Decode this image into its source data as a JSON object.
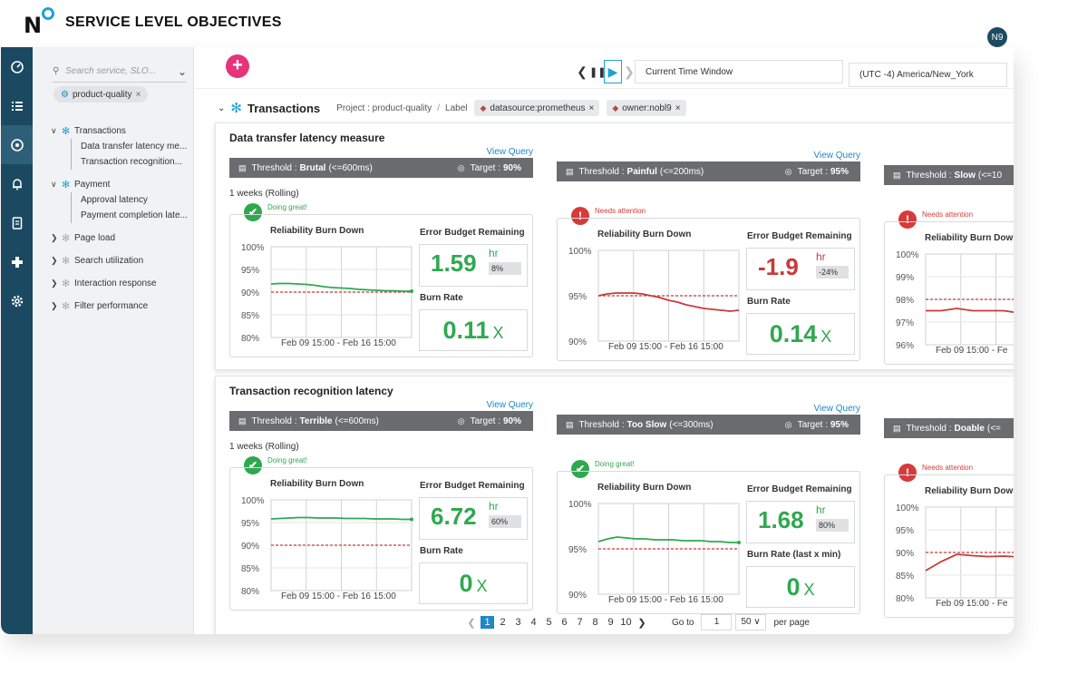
{
  "app": {
    "brand_n": "N",
    "title": "SERVICE LEVEL OBJECTIVES",
    "avatar": "N9",
    "colors": {
      "rail": "#1b4961",
      "accent": "#1ea1d9",
      "add": "#e5347a",
      "good": "#2fa84f",
      "bad": "#c93a3a"
    }
  },
  "rail": [
    {
      "icon": "gauge-icon"
    },
    {
      "icon": "list-icon"
    },
    {
      "icon": "slo-icon"
    },
    {
      "icon": "bell-icon"
    },
    {
      "icon": "document-icon"
    },
    {
      "icon": "integrations-icon"
    },
    {
      "icon": "gear-icon"
    }
  ],
  "sidebar": {
    "search_placeholder": "Search service, SLO...",
    "chip": "product-quality",
    "tree": [
      {
        "label": "Transactions",
        "expanded": true,
        "children": [
          "Data transfer latency me...",
          "Transaction recognition..."
        ]
      },
      {
        "label": "Payment",
        "expanded": true,
        "children": [
          "Approval latency",
          "Payment completion late..."
        ]
      },
      {
        "label": "Page load",
        "expanded": false,
        "children": []
      },
      {
        "label": "Search utilization",
        "expanded": false,
        "children": []
      },
      {
        "label": "Interaction response",
        "expanded": false,
        "children": []
      },
      {
        "label": "Filter performance",
        "expanded": false,
        "children": []
      }
    ]
  },
  "toolbar": {
    "time_window": "Current Time Window",
    "timezone": "(UTC -4) America/New_York"
  },
  "group": {
    "title": "Transactions",
    "project": "Project : product-quality",
    "label_sep": "/",
    "label": "Label",
    "tags": [
      "datasource:prometheus",
      "owner:nobl9"
    ]
  },
  "common": {
    "view_query": "View Query",
    "threshold": "Threshold :",
    "target": "Target :",
    "rb_title": "Reliability Burn Down",
    "ebr_title": "Error Budget Remaining",
    "x_label": "Feb 09 15:00 - Feb 16 15:00",
    "x_label_cut": "Feb 09 15:00 - Fe"
  },
  "slos": [
    {
      "title": "Data transfer latency measure",
      "rolling": "1 weeks (Rolling)",
      "objectives": [
        {
          "name": "Brutal",
          "cond": "(<=600ms)",
          "target": "90%",
          "status": "Doing great!",
          "ok": true,
          "yticks": [
            "100%",
            "95%",
            "90%",
            "85%",
            "80%"
          ],
          "ebr": "1.59",
          "unit": "hr",
          "pct": "8%",
          "br_title": "Burn Rate",
          "br": "0.11",
          "x": "X",
          "chart": {
            "ymin": 80,
            "ymax": 100,
            "target": 90,
            "series": [
              91.8,
              91.9,
              91.9,
              91.8,
              91.7,
              91.5,
              91.2,
              91.0,
              90.9,
              90.8,
              90.6,
              90.5,
              90.4,
              90.3,
              90.3,
              90.2,
              90.2
            ]
          }
        },
        {
          "name": "Painful",
          "cond": "(<=200ms)",
          "target": "95%",
          "status": "Needs attention",
          "ok": false,
          "yticks": [
            "100%",
            "95%",
            "90%"
          ],
          "ebr": "-1.9",
          "unit": "hr",
          "pct": "-24%",
          "br_title": "Burn Rate",
          "br": "0.14",
          "x": "X",
          "chart": {
            "ymin": 90,
            "ymax": 100,
            "target": 95,
            "series": [
              95.0,
              95.2,
              95.3,
              95.3,
              95.3,
              95.2,
              95.0,
              94.8,
              94.5,
              94.3,
              94.0,
              93.8,
              93.6,
              93.5,
              93.4,
              93.3,
              93.4
            ]
          }
        },
        {
          "name": "Slow",
          "cond": "(<=10",
          "target": "",
          "status": "Needs attention",
          "ok": false,
          "yticks": [
            "100%",
            "99%",
            "98%",
            "97%",
            "96%"
          ],
          "ebr": "",
          "unit": "",
          "pct": "",
          "br_title": "",
          "br": "",
          "x": "",
          "chart": {
            "ymin": 96,
            "ymax": 100,
            "target": 98,
            "series": [
              97.5,
              97.5,
              97.6,
              97.5,
              97.5,
              97.5,
              97.4,
              97.5,
              97.4,
              97.3
            ]
          }
        }
      ]
    },
    {
      "title": "Transaction recognition latency",
      "rolling": "1 weeks (Rolling)",
      "objectives": [
        {
          "name": "Terrible",
          "cond": "(<=600ms)",
          "target": "90%",
          "status": "Doing great!",
          "ok": true,
          "yticks": [
            "100%",
            "95%",
            "90%",
            "85%",
            "80%"
          ],
          "ebr": "6.72",
          "unit": "hr",
          "pct": "60%",
          "br_title": "Burn Rate",
          "br": "0",
          "x": "X",
          "chart": {
            "ymin": 80,
            "ymax": 100,
            "target": 90,
            "series": [
              95.8,
              95.9,
              96.0,
              96.1,
              96.1,
              96.0,
              96.0,
              96.0,
              95.9,
              95.9,
              95.9,
              95.8,
              95.8,
              95.8,
              95.7,
              95.7
            ]
          }
        },
        {
          "name": "Too Slow",
          "cond": "(<=300ms)",
          "target": "95%",
          "status": "Doing great!",
          "ok": true,
          "yticks": [
            "100%",
            "95%",
            "90%"
          ],
          "ebr": "1.68",
          "unit": "hr",
          "pct": "80%",
          "br_title": "Burn Rate (last x min)",
          "br": "0",
          "x": "X",
          "chart": {
            "ymin": 90,
            "ymax": 100,
            "target": 95,
            "series": [
              95.8,
              96.1,
              96.3,
              96.2,
              96.1,
              96.1,
              96.0,
              96.0,
              96.0,
              95.9,
              95.9,
              95.9,
              95.8,
              95.8,
              95.7,
              95.7
            ]
          }
        },
        {
          "name": "Doable",
          "cond": "(<=",
          "target": "",
          "status": "Needs attention",
          "ok": false,
          "yticks": [
            "100%",
            "95%",
            "90%",
            "85%",
            "80%"
          ],
          "ebr": "",
          "unit": "",
          "pct": "",
          "br_title": "",
          "br": "",
          "x": "",
          "chart": {
            "ymin": 80,
            "ymax": 100,
            "target": 90,
            "series": [
              86.0,
              88.0,
              89.6,
              89.3,
              89.1,
              89.2,
              89.0,
              89.2,
              88.6,
              88.3
            ]
          }
        }
      ]
    }
  ],
  "pager": {
    "pages": [
      "1",
      "2",
      "3",
      "4",
      "5",
      "6",
      "7",
      "8",
      "9",
      "10"
    ],
    "active": "1",
    "goto_label": "Go to",
    "goto_value": "1",
    "page_size": "50",
    "per_page": "per page"
  }
}
